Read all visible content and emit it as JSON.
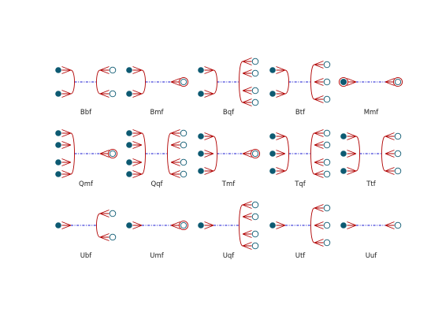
{
  "colors": {
    "filled_node": "#0d5a72",
    "open_node_stroke": "#0d5a72",
    "open_node_fill": "#ffffff",
    "connector": "#b00000",
    "dash_line": "#1515d0",
    "label": "#222222"
  },
  "panels": [
    {
      "label": "Bbf",
      "left": {
        "kind": "fork",
        "n": 2
      },
      "right": {
        "kind": "fork",
        "n": 2
      }
    },
    {
      "label": "Bmf",
      "left": {
        "kind": "fork",
        "n": 2
      },
      "right": {
        "kind": "single"
      }
    },
    {
      "label": "Bqf",
      "left": {
        "kind": "fork",
        "n": 2
      },
      "right": {
        "kind": "fork",
        "n": 4
      }
    },
    {
      "label": "Btf",
      "left": {
        "kind": "fork",
        "n": 2
      },
      "right": {
        "kind": "fork",
        "n": 3
      }
    },
    {
      "label": "Mmf",
      "left": {
        "kind": "single"
      },
      "right": {
        "kind": "single"
      }
    },
    {
      "label": "Qmf",
      "left": {
        "kind": "fork",
        "n": 4
      },
      "right": {
        "kind": "single"
      }
    },
    {
      "label": "Qqf",
      "left": {
        "kind": "fork",
        "n": 4
      },
      "right": {
        "kind": "fork",
        "n": 4
      }
    },
    {
      "label": "Tmf",
      "left": {
        "kind": "fork",
        "n": 3
      },
      "right": {
        "kind": "single"
      }
    },
    {
      "label": "Tqf",
      "left": {
        "kind": "fork",
        "n": 3
      },
      "right": {
        "kind": "fork",
        "n": 4
      }
    },
    {
      "label": "Ttf",
      "left": {
        "kind": "fork",
        "n": 3
      },
      "right": {
        "kind": "fork",
        "n": 3
      }
    },
    {
      "label": "Ubf",
      "left": {
        "kind": "one"
      },
      "right": {
        "kind": "fork",
        "n": 2
      }
    },
    {
      "label": "Umf",
      "left": {
        "kind": "one"
      },
      "right": {
        "kind": "single"
      }
    },
    {
      "label": "Uqf",
      "left": {
        "kind": "one"
      },
      "right": {
        "kind": "fork",
        "n": 4
      }
    },
    {
      "label": "Utf",
      "left": {
        "kind": "one"
      },
      "right": {
        "kind": "fork",
        "n": 3
      }
    },
    {
      "label": "Uuf",
      "left": {
        "kind": "one"
      },
      "right": {
        "kind": "one"
      }
    }
  ]
}
